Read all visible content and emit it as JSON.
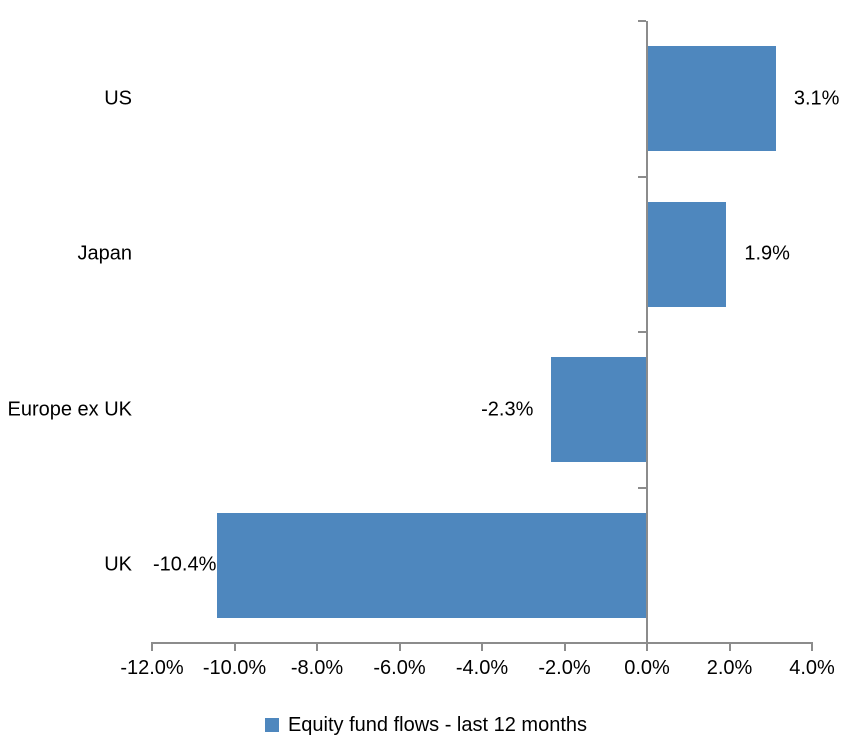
{
  "chart_data": {
    "type": "bar",
    "orientation": "horizontal",
    "categories": [
      "US",
      "Japan",
      "Europe ex UK",
      "UK"
    ],
    "values": [
      3.1,
      1.9,
      -2.3,
      -10.4
    ],
    "value_labels": [
      "3.1%",
      "1.9%",
      "-2.3%",
      "-10.4%"
    ],
    "x_axis": {
      "min": -12,
      "max": 4,
      "step": 2,
      "tick_labels": [
        "-12.0%",
        "-10.0%",
        "-8.0%",
        "-6.0%",
        "-4.0%",
        "-2.0%",
        "0.0%",
        "2.0%",
        "4.0%"
      ]
    },
    "legend": {
      "position": "bottom",
      "label": "Equity fund flows - last 12 months"
    },
    "grid": "off",
    "bar_color": "#4E87BE",
    "axis_color": "#8C8C8C",
    "text_color": "#000000",
    "background_color": "#FFFFFF"
  }
}
